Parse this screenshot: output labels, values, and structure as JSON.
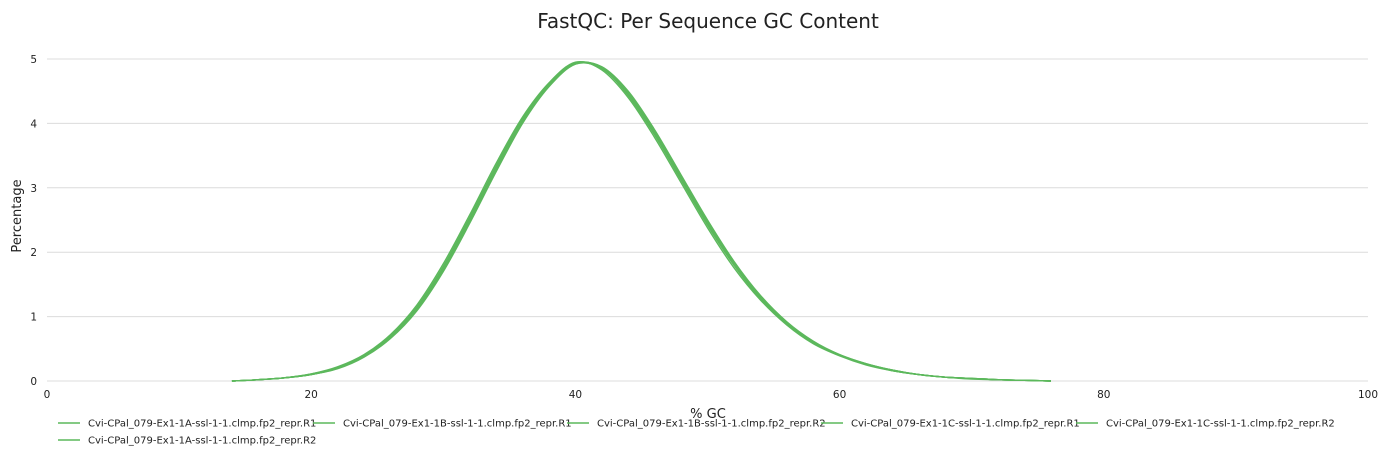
{
  "chart_data": {
    "type": "line",
    "title": "FastQC: Per Sequence GC Content",
    "xlabel": "% GC",
    "ylabel": "Percentage",
    "xlim": [
      0,
      100
    ],
    "ylim": [
      0,
      5
    ],
    "x_ticks": [
      0,
      20,
      40,
      60,
      80,
      100
    ],
    "y_ticks": [
      0,
      1,
      2,
      3,
      4,
      5
    ],
    "grid": "horizontal",
    "legend_position": "bottom",
    "line_color": "#5cb85c",
    "series": [
      {
        "name": "Cvi-CPal_079-Ex1-1A-ssl-1-1.clmp.fp2_repr.R1",
        "x": [
          14,
          16,
          18,
          20,
          22,
          24,
          26,
          28,
          30,
          32,
          34,
          36,
          38,
          40,
          42,
          44,
          46,
          48,
          50,
          52,
          54,
          56,
          58,
          60,
          62,
          64,
          66,
          68,
          70,
          72,
          74,
          76
        ],
        "y": [
          0.0,
          0.02,
          0.05,
          0.1,
          0.2,
          0.38,
          0.68,
          1.12,
          1.74,
          2.5,
          3.3,
          4.05,
          4.6,
          4.93,
          4.85,
          4.45,
          3.85,
          3.15,
          2.45,
          1.82,
          1.3,
          0.9,
          0.6,
          0.4,
          0.26,
          0.16,
          0.1,
          0.06,
          0.04,
          0.02,
          0.01,
          0.0
        ]
      },
      {
        "name": "Cvi-CPal_079-Ex1-1B-ssl-1-1.clmp.fp2_repr.R1",
        "x": [
          14,
          16,
          18,
          20,
          22,
          24,
          26,
          28,
          30,
          32,
          34,
          36,
          38,
          40,
          42,
          44,
          46,
          48,
          50,
          52,
          54,
          56,
          58,
          60,
          62,
          64,
          66,
          68,
          70,
          72,
          74,
          76
        ],
        "y": [
          0.0,
          0.02,
          0.05,
          0.11,
          0.22,
          0.41,
          0.72,
          1.18,
          1.82,
          2.58,
          3.38,
          4.1,
          4.63,
          4.95,
          4.83,
          4.4,
          3.78,
          3.08,
          2.38,
          1.76,
          1.26,
          0.87,
          0.58,
          0.39,
          0.25,
          0.16,
          0.1,
          0.06,
          0.03,
          0.02,
          0.01,
          0.0
        ]
      },
      {
        "name": "Cvi-CPal_079-Ex1-1B-ssl-1-1.clmp.fp2_repr.R2",
        "x": [
          14,
          16,
          18,
          20,
          22,
          24,
          26,
          28,
          30,
          32,
          34,
          36,
          38,
          40,
          42,
          44,
          46,
          48,
          50,
          52,
          54,
          56,
          58,
          60,
          62,
          64,
          66,
          68,
          70,
          72,
          74,
          76
        ],
        "y": [
          0.0,
          0.02,
          0.05,
          0.1,
          0.19,
          0.37,
          0.66,
          1.09,
          1.7,
          2.45,
          3.25,
          4.0,
          4.57,
          4.92,
          4.88,
          4.5,
          3.9,
          3.2,
          2.5,
          1.86,
          1.33,
          0.92,
          0.62,
          0.41,
          0.27,
          0.17,
          0.1,
          0.06,
          0.04,
          0.02,
          0.01,
          0.0
        ]
      },
      {
        "name": "Cvi-CPal_079-Ex1-1C-ssl-1-1.clmp.fp2_repr.R1",
        "x": [
          14,
          16,
          18,
          20,
          22,
          24,
          26,
          28,
          30,
          32,
          34,
          36,
          38,
          40,
          42,
          44,
          46,
          48,
          50,
          52,
          54,
          56,
          58,
          60,
          62,
          64,
          66,
          68,
          70,
          72,
          74,
          76
        ],
        "y": [
          0.0,
          0.02,
          0.05,
          0.11,
          0.21,
          0.4,
          0.7,
          1.15,
          1.78,
          2.54,
          3.34,
          4.07,
          4.61,
          4.94,
          4.86,
          4.43,
          3.82,
          3.12,
          2.42,
          1.8,
          1.28,
          0.89,
          0.59,
          0.4,
          0.26,
          0.16,
          0.1,
          0.06,
          0.04,
          0.02,
          0.01,
          0.0
        ]
      },
      {
        "name": "Cvi-CPal_079-Ex1-1C-ssl-1-1.clmp.fp2_repr.R2",
        "x": [
          14,
          16,
          18,
          20,
          22,
          24,
          26,
          28,
          30,
          32,
          34,
          36,
          38,
          40,
          42,
          44,
          46,
          48,
          50,
          52,
          54,
          56,
          58,
          60,
          62,
          64,
          66,
          68,
          70,
          72,
          74,
          76
        ],
        "y": [
          0.0,
          0.02,
          0.05,
          0.1,
          0.2,
          0.39,
          0.69,
          1.13,
          1.75,
          2.51,
          3.31,
          4.05,
          4.6,
          4.93,
          4.87,
          4.47,
          3.87,
          3.17,
          2.47,
          1.84,
          1.31,
          0.91,
          0.61,
          0.4,
          0.26,
          0.17,
          0.1,
          0.06,
          0.04,
          0.02,
          0.01,
          0.0
        ]
      },
      {
        "name": "Cvi-CPal_079-Ex1-1A-ssl-1-1.clmp.fp2_repr.R2",
        "x": [
          14,
          16,
          18,
          20,
          22,
          24,
          26,
          28,
          30,
          32,
          34,
          36,
          38,
          40,
          42,
          44,
          46,
          48,
          50,
          52,
          54,
          56,
          58,
          60,
          62,
          64,
          66,
          68,
          70,
          72,
          74,
          76
        ],
        "y": [
          0.0,
          0.02,
          0.05,
          0.1,
          0.2,
          0.38,
          0.67,
          1.11,
          1.72,
          2.48,
          3.28,
          4.02,
          4.58,
          4.92,
          4.86,
          4.48,
          3.88,
          3.18,
          2.48,
          1.84,
          1.32,
          0.91,
          0.61,
          0.41,
          0.27,
          0.17,
          0.1,
          0.06,
          0.04,
          0.02,
          0.01,
          0.0
        ]
      }
    ]
  }
}
